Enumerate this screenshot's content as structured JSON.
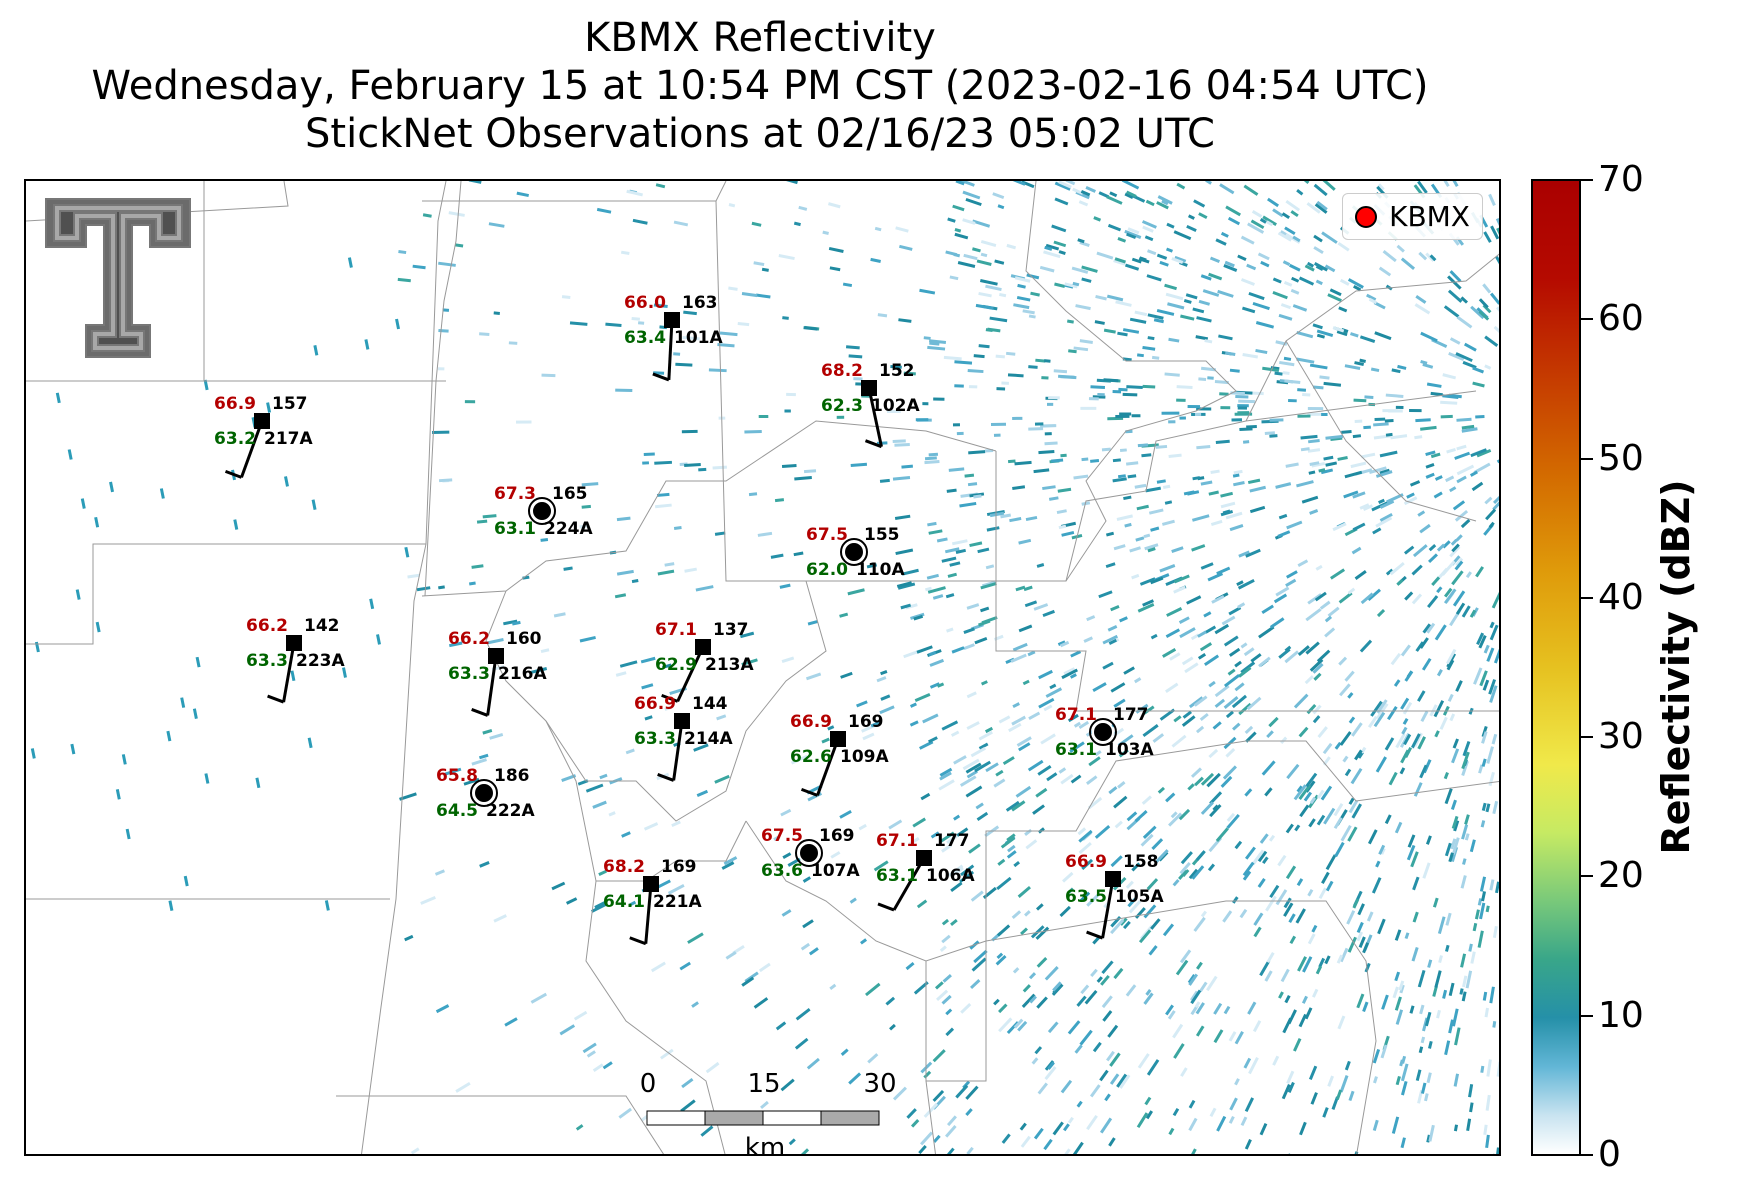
{
  "title": {
    "line1": "KBMX Reflectivity",
    "line2": "Wednesday, February 15 at 10:54 PM CST (2023-02-16 04:54 UTC)",
    "line3": "StickNet Observations at 02/16/23 05:02 UTC"
  },
  "legend": {
    "label": "KBMX",
    "marker_color": "#ff0000"
  },
  "colorbar": {
    "label": "Reflectivity (dBZ)",
    "ticks": [
      "0",
      "10",
      "20",
      "30",
      "40",
      "50",
      "60",
      "70"
    ],
    "colors": {
      "low": "#ffffff",
      "mid": "#2590a8",
      "high": "#aa0000"
    }
  },
  "scalebar": {
    "ticks": [
      "0",
      "15",
      "30"
    ],
    "unit": "km"
  },
  "stations": [
    {
      "id": "101A",
      "temp": "66.0",
      "dew": "63.4",
      "pres": "163",
      "marker": "square"
    },
    {
      "id": "217A",
      "temp": "66.9",
      "dew": "63.2",
      "pres": "157",
      "marker": "square"
    },
    {
      "id": "102A",
      "temp": "68.2",
      "dew": "62.3",
      "pres": "152",
      "marker": "square"
    },
    {
      "id": "224A",
      "temp": "67.3",
      "dew": "63.1",
      "pres": "165",
      "marker": "circle"
    },
    {
      "id": "110A",
      "temp": "67.5",
      "dew": "62.0",
      "pres": "155",
      "marker": "circle"
    },
    {
      "id": "223A",
      "temp": "66.2",
      "dew": "63.3",
      "pres": "142",
      "marker": "square"
    },
    {
      "id": "216A",
      "temp": "66.2",
      "dew": "63.3",
      "pres": "160",
      "marker": "square"
    },
    {
      "id": "213A",
      "temp": "67.1",
      "dew": "62.9",
      "pres": "137",
      "marker": "square"
    },
    {
      "id": "214A",
      "temp": "66.9",
      "dew": "63.3",
      "pres": "144",
      "marker": "square"
    },
    {
      "id": "109A",
      "temp": "66.9",
      "dew": "62.6",
      "pres": "169",
      "marker": "square"
    },
    {
      "id": "103A",
      "temp": "67.1",
      "dew": "63.1",
      "pres": "177",
      "marker": "circle"
    },
    {
      "id": "222A",
      "temp": "65.8",
      "dew": "64.5",
      "pres": "186",
      "marker": "circle"
    },
    {
      "id": "107A",
      "temp": "67.5",
      "dew": "63.6",
      "pres": "169",
      "marker": "circle"
    },
    {
      "id": "106A",
      "temp": "67.1",
      "dew": "63.1",
      "pres": "177",
      "marker": "square"
    },
    {
      "id": "221A",
      "temp": "68.2",
      "dew": "64.1",
      "pres": "169",
      "marker": "square"
    },
    {
      "id": "105A",
      "temp": "66.9",
      "dew": "63.5",
      "pres": "158",
      "marker": "square"
    }
  ]
}
